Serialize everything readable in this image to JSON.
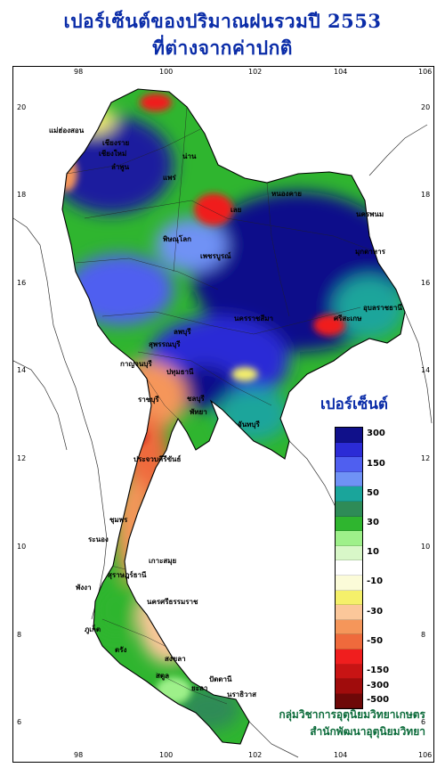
{
  "title": {
    "line1": "เปอร์เซ็นต์ของปริมาณฝนรวมปี  2553",
    "line2": "ที่ต่างจากค่าปกติ"
  },
  "axes": {
    "longitude_labels": [
      "98",
      "100",
      "102",
      "104",
      "106"
    ],
    "latitude_labels": [
      "20",
      "18",
      "16",
      "14",
      "12",
      "10",
      "8",
      "6"
    ]
  },
  "legend": {
    "title": "เปอร์เซ็นต์",
    "colors": [
      "#10108a",
      "#2b2bd6",
      "#4f5ff0",
      "#6f92f5",
      "#1aa59b",
      "#2e8b57",
      "#2fb52f",
      "#9ef08a",
      "#d8f7c8",
      "#ffffff",
      "#fbfbd8",
      "#f5f06a",
      "#fbc79a",
      "#f5965a",
      "#ef6a3c",
      "#f01e1e",
      "#c81414",
      "#a00c0c",
      "#6e0808"
    ],
    "labels": [
      "300",
      "150",
      "50",
      "30",
      "10",
      "-10",
      "-30",
      "-50",
      "-150",
      "-300",
      "-500"
    ]
  },
  "places": [
    "เชียงราย",
    "เชียงใหม่",
    "ลำพูน",
    "แม่ฮ่องสอน",
    "น่าน",
    "แพร่",
    "หนองคาย",
    "นครพนม",
    "เลย",
    "มุกดาหาร",
    "พิษณุโลก",
    "เพชรบูรณ์",
    "อุบลราชธานี",
    "ศรีสะเกษ",
    "นครราชสีมา",
    "ลพบุรี",
    "สุพรรณบุรี",
    "กาญจนบุรี",
    "ปทุมธานี",
    "ราชบุรี",
    "ชลบุรี",
    "พัทยา",
    "จันทบุรี",
    "ประจวบคีรีขันธ์",
    "ชุมพร",
    "ระนอง",
    "เกาะสมุย",
    "สุราษฎร์ธานี",
    "พังงา",
    "ภูเก็ต",
    "นครศรีธรรมราช",
    "สงขลา",
    "ตรัง",
    "สตูล",
    "ปัตตานี",
    "ยะลา",
    "นราธิวาส"
  ],
  "credit": {
    "line1": "กลุ่มวิชาการอุตุนิยมวิทยาเกษตร",
    "line2": "สำนักพัฒนาอุตุนิยมวิทยา"
  }
}
